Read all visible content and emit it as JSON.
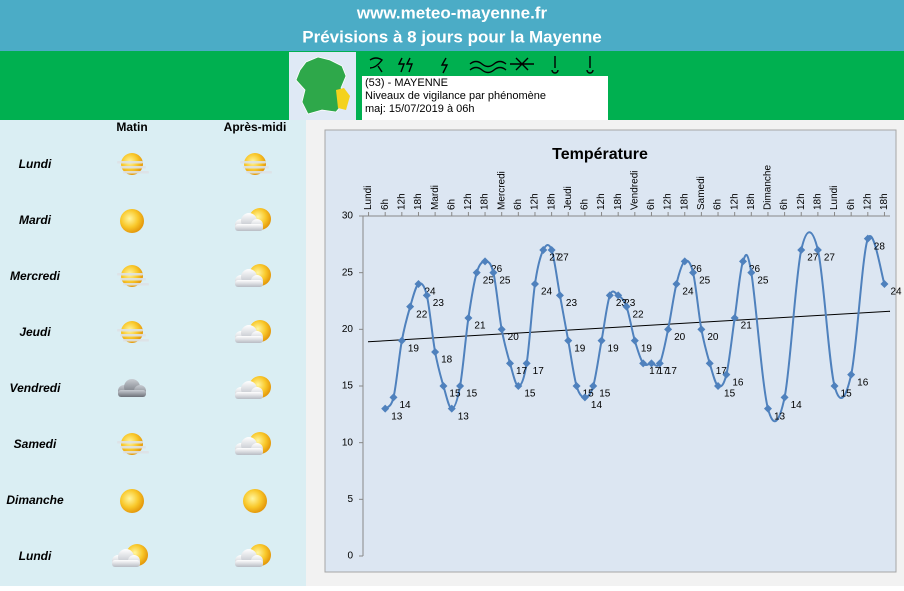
{
  "header": {
    "site": "www.meteo-mayenne.fr",
    "title": "Prévisions à 8 jours pour la Mayenne"
  },
  "vigilance": {
    "department": "(53) - MAYENNE",
    "subtitle": "Niveaux de vigilance par phénomène",
    "updated": "maj: 15/07/2019 à 06h"
  },
  "forecast": {
    "columns": [
      "Matin",
      "Après-midi"
    ],
    "days": [
      "Lundi",
      "Mardi",
      "Mercredi",
      "Jeudi",
      "Vendredi",
      "Samedi",
      "Dimanche",
      "Lundi"
    ]
  },
  "chart_data": {
    "type": "line",
    "title": "Température",
    "x": [
      6,
      9,
      12,
      15,
      18,
      21,
      24,
      27,
      30,
      33,
      36,
      39,
      42,
      45,
      48,
      51,
      54,
      57,
      60,
      63,
      66,
      69,
      72,
      75,
      78,
      81,
      84,
      87,
      90,
      93,
      96,
      99,
      102,
      105,
      108,
      111,
      114,
      117,
      120,
      123,
      126,
      129,
      132,
      135,
      138,
      144,
      150,
      156,
      162,
      168,
      174,
      180,
      186
    ],
    "values": [
      13,
      14,
      19,
      22,
      24,
      23,
      18,
      15,
      13,
      15,
      21,
      25,
      26,
      25,
      20,
      17,
      15,
      17,
      24,
      27,
      27,
      23,
      19,
      15,
      14,
      15,
      19,
      23,
      23,
      22,
      19,
      17,
      17,
      17,
      20,
      24,
      26,
      25,
      20,
      17,
      15,
      16,
      21,
      26,
      25,
      13,
      14,
      27,
      27,
      15,
      16,
      28,
      24
    ],
    "color": "#4f81bd",
    "trendline": [
      18.9,
      21.6
    ],
    "xlim": [
      -2,
      188
    ],
    "xticks": [
      {
        "value": 0,
        "label": "Lundi"
      },
      {
        "value": 6,
        "label": "6h"
      },
      {
        "value": 12,
        "label": "12h"
      },
      {
        "value": 18,
        "label": "18h"
      },
      {
        "value": 24,
        "label": "Mardi"
      },
      {
        "value": 30,
        "label": "6h"
      },
      {
        "value": 36,
        "label": "12h"
      },
      {
        "value": 42,
        "label": "18h"
      },
      {
        "value": 48,
        "label": "Mercredi"
      },
      {
        "value": 54,
        "label": "6h"
      },
      {
        "value": 60,
        "label": "12h"
      },
      {
        "value": 66,
        "label": "18h"
      },
      {
        "value": 72,
        "label": "Jeudi"
      },
      {
        "value": 78,
        "label": "6h"
      },
      {
        "value": 84,
        "label": "12h"
      },
      {
        "value": 90,
        "label": "18h"
      },
      {
        "value": 96,
        "label": "Vendredi"
      },
      {
        "value": 102,
        "label": "6h"
      },
      {
        "value": 108,
        "label": "12h"
      },
      {
        "value": 114,
        "label": "18h"
      },
      {
        "value": 120,
        "label": "Samedi"
      },
      {
        "value": 126,
        "label": "6h"
      },
      {
        "value": 132,
        "label": "12h"
      },
      {
        "value": 138,
        "label": "18h"
      },
      {
        "value": 144,
        "label": "Dimanche"
      },
      {
        "value": 150,
        "label": "6h"
      },
      {
        "value": 156,
        "label": "12h"
      },
      {
        "value": 162,
        "label": "18h"
      },
      {
        "value": 168,
        "label": "Lundi"
      },
      {
        "value": 174,
        "label": "6h"
      },
      {
        "value": 180,
        "label": "12h"
      },
      {
        "value": 186,
        "label": "18h"
      }
    ],
    "ylim": [
      0,
      30
    ],
    "yticks": [
      0,
      5,
      10,
      15,
      20,
      25,
      30
    ],
    "grid": false
  }
}
